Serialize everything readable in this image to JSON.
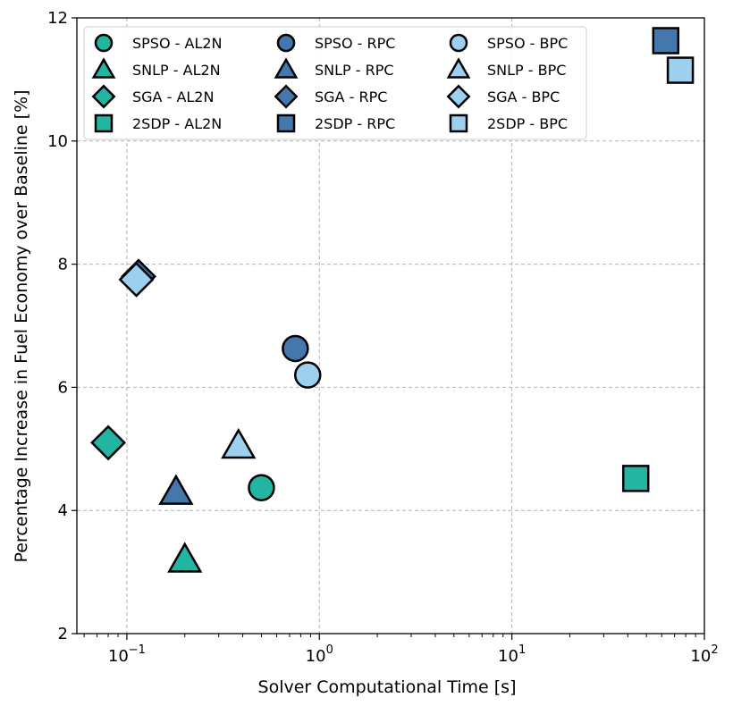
{
  "chart_data": {
    "type": "scatter",
    "title": "",
    "xlabel": "Solver Computational Time [s]",
    "ylabel": "Percentage Increase in Fuel Economy over Baseline [%]",
    "xscale": "log",
    "xlim": [
      0.055,
      100
    ],
    "ylim": [
      2,
      12
    ],
    "x_ticks": [
      {
        "value": 0.1,
        "base": "10",
        "exp": "−1"
      },
      {
        "value": 1,
        "base": "10",
        "exp": "0"
      },
      {
        "value": 10,
        "base": "10",
        "exp": "1"
      },
      {
        "value": 100,
        "base": "10",
        "exp": "2"
      }
    ],
    "y_ticks": [
      "2",
      "4",
      "6",
      "8",
      "10",
      "12"
    ],
    "grid": true,
    "legend_position": "top",
    "colors": {
      "AL2N": "#22b5a1",
      "RPC": "#4478ad",
      "BPC": "#9dcfee"
    },
    "series": [
      {
        "name": "SPSO - AL2N",
        "marker": "circle",
        "group": "AL2N",
        "x": [
          0.5
        ],
        "y": [
          4.37
        ]
      },
      {
        "name": "SNLP - AL2N",
        "marker": "triangle",
        "group": "AL2N",
        "x": [
          0.2
        ],
        "y": [
          3.2
        ]
      },
      {
        "name": "SGA - AL2N",
        "marker": "diamond",
        "group": "AL2N",
        "x": [
          0.08
        ],
        "y": [
          5.1
        ]
      },
      {
        "name": "2SDP - AL2N",
        "marker": "square",
        "group": "AL2N",
        "x": [
          44
        ],
        "y": [
          4.52
        ]
      },
      {
        "name": "SPSO - RPC",
        "marker": "circle",
        "group": "RPC",
        "x": [
          0.75
        ],
        "y": [
          6.63
        ]
      },
      {
        "name": "SNLP - RPC",
        "marker": "triangle",
        "group": "RPC",
        "x": [
          0.18
        ],
        "y": [
          4.3
        ]
      },
      {
        "name": "SGA - RPC",
        "marker": "diamond",
        "group": "RPC",
        "x": [
          0.115
        ],
        "y": [
          7.8
        ]
      },
      {
        "name": "2SDP - RPC",
        "marker": "square",
        "group": "RPC",
        "x": [
          63
        ],
        "y": [
          11.63
        ]
      },
      {
        "name": "SPSO - BPC",
        "marker": "circle",
        "group": "BPC",
        "x": [
          0.87
        ],
        "y": [
          6.2
        ]
      },
      {
        "name": "SNLP - BPC",
        "marker": "triangle",
        "group": "BPC",
        "x": [
          0.38
        ],
        "y": [
          5.05
        ]
      },
      {
        "name": "SGA - BPC",
        "marker": "diamond",
        "group": "BPC",
        "x": [
          0.112
        ],
        "y": [
          7.75
        ]
      },
      {
        "name": "2SDP - BPC",
        "marker": "square",
        "group": "BPC",
        "x": [
          75
        ],
        "y": [
          11.15
        ]
      }
    ]
  }
}
